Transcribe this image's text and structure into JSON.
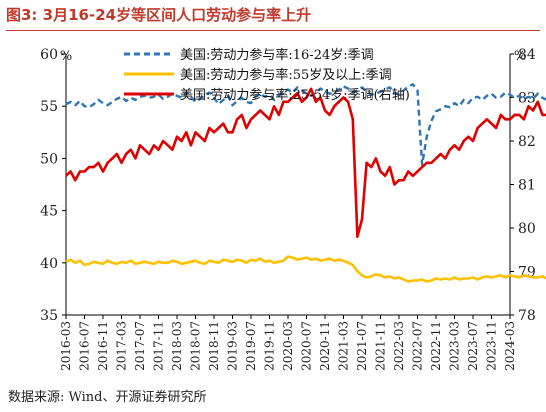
{
  "header": {
    "title": "图3: 3月16-24岁等区间人口劳动参与率上升"
  },
  "footer": {
    "source": "数据来源: Wind、开源证券研究所"
  },
  "colors": {
    "series_16_24": "#2e75b6",
    "series_55": "#ffc000",
    "series_25_54": "#e00000",
    "title": "#c0392b"
  },
  "chart_data": {
    "type": "line",
    "left_axis": {
      "unit": "%",
      "ylim": [
        35,
        60
      ],
      "ticks": [
        35,
        40,
        45,
        50,
        55,
        60
      ]
    },
    "right_axis": {
      "unit": "%",
      "ylim": [
        78,
        84
      ],
      "ticks": [
        78,
        79,
        80,
        81,
        82,
        83,
        84
      ]
    },
    "x_tick_labels": [
      "2016-03",
      "2016-07",
      "2016-11",
      "2017-03",
      "2017-07",
      "2017-11",
      "2018-03",
      "2018-07",
      "2018-11",
      "2019-03",
      "2019-07",
      "2019-11",
      "2020-03",
      "2020-07",
      "2020-11",
      "2021-03",
      "2021-07",
      "2021-11",
      "2022-03",
      "2022-07",
      "2022-11",
      "2023-03",
      "2023-07",
      "2023-11",
      "2024-03"
    ],
    "grid": false,
    "legend": "top",
    "series": [
      {
        "name": "美国:劳动力参与率:16-24岁:季调",
        "axis": "left",
        "style": "dashed",
        "start": "2016-03",
        "values": [
          55.2,
          55.4,
          55.1,
          55.5,
          55.0,
          54.9,
          55.2,
          55.6,
          55.3,
          55.1,
          55.4,
          55.7,
          55.9,
          55.5,
          55.8,
          55.6,
          55.9,
          56.0,
          55.8,
          55.9,
          56.1,
          55.7,
          55.9,
          56.2,
          56.0,
          55.8,
          56.3,
          55.9,
          55.4,
          55.7,
          56.1,
          56.3,
          55.8,
          55.2,
          55.6,
          56.0,
          55.1,
          55.5,
          55.8,
          55.4,
          55.3,
          55.9,
          56.2,
          55.9,
          56.1,
          55.6,
          56.0,
          56.4,
          56.6,
          56.3,
          56.8,
          56.5,
          56.2,
          56.0,
          56.3,
          56.7,
          56.4,
          56.2,
          56.3,
          56.6,
          56.9,
          56.7,
          56.3,
          56.5,
          56.8,
          56.4,
          56.1,
          56.2,
          56.4,
          56.6,
          56.8,
          56.3,
          56.1,
          56.5,
          56.9,
          57.1,
          56.5,
          49.4,
          52.1,
          53.6,
          54.5,
          54.7,
          55.0,
          54.9,
          55.3,
          55.0,
          55.6,
          55.3,
          55.8,
          55.9,
          55.6,
          56.0,
          56.2,
          55.8,
          55.9,
          56.3,
          56.1,
          55.8,
          56.0,
          55.7,
          55.9,
          55.7,
          56.2,
          55.8,
          55.6,
          55.9,
          56.0,
          55.8,
          55.6,
          56.0,
          56.7,
          56.4,
          56.2,
          56.8,
          56.3,
          56.1,
          55.9,
          56.2,
          56.5,
          56.1,
          56.6,
          56.3,
          56.0,
          56.8,
          56.4,
          56.9,
          56.2,
          56.5,
          56.0,
          56.7
        ]
      },
      {
        "name": "美国:劳动力参与率:55岁及以上:季调",
        "axis": "left",
        "style": "solid",
        "start": "2016-03",
        "values": [
          40.1,
          40.3,
          40.0,
          40.2,
          39.8,
          39.9,
          40.1,
          40.0,
          39.9,
          40.2,
          40.0,
          39.9,
          40.1,
          40.0,
          40.2,
          39.9,
          40.0,
          40.1,
          40.0,
          39.9,
          40.1,
          40.0,
          40.0,
          40.2,
          40.1,
          39.9,
          40.0,
          40.1,
          40.2,
          40.0,
          39.9,
          40.2,
          40.1,
          40.0,
          40.3,
          40.2,
          40.1,
          40.3,
          40.2,
          40.0,
          40.3,
          40.2,
          40.4,
          40.1,
          40.2,
          40.0,
          40.1,
          40.2,
          40.6,
          40.5,
          40.3,
          40.4,
          40.5,
          40.3,
          40.4,
          40.2,
          40.3,
          40.4,
          40.2,
          40.3,
          40.2,
          40.0,
          39.8,
          39.2,
          38.8,
          38.6,
          38.7,
          38.9,
          38.8,
          38.6,
          38.7,
          38.5,
          38.6,
          38.4,
          38.2,
          38.3,
          38.3,
          38.4,
          38.2,
          38.3,
          38.5,
          38.4,
          38.5,
          38.4,
          38.6,
          38.4,
          38.5,
          38.5,
          38.6,
          38.4,
          38.6,
          38.7,
          38.6,
          38.7,
          38.8,
          38.6,
          38.8,
          38.7,
          38.6,
          38.8,
          38.7,
          38.6,
          38.6,
          38.7,
          38.5,
          38.6,
          38.7,
          38.6,
          38.5,
          38.6,
          38.7,
          38.8,
          38.6,
          38.5,
          38.7,
          38.6,
          38.7,
          38.8,
          38.7,
          38.5,
          38.6,
          38.5,
          38.6,
          38.7,
          38.6,
          38.7,
          38.8,
          38.7,
          38.6,
          38.7,
          38.7
        ]
      },
      {
        "name": "美国:劳动力参与率:25-54岁:季调(右轴)",
        "axis": "right",
        "style": "solid",
        "start": "2016-03",
        "values": [
          81.2,
          81.3,
          81.1,
          81.3,
          81.3,
          81.4,
          81.4,
          81.5,
          81.3,
          81.5,
          81.6,
          81.7,
          81.5,
          81.7,
          81.8,
          81.6,
          81.9,
          81.8,
          81.7,
          81.9,
          81.8,
          82.0,
          81.9,
          81.8,
          82.1,
          82.0,
          82.2,
          81.9,
          82.2,
          82.1,
          82.0,
          82.3,
          82.2,
          82.3,
          82.4,
          82.2,
          82.2,
          82.5,
          82.6,
          82.3,
          82.5,
          82.6,
          82.7,
          82.6,
          82.5,
          82.8,
          82.6,
          82.9,
          82.9,
          83.0,
          83.1,
          82.9,
          83.0,
          83.2,
          82.9,
          83.0,
          82.7,
          82.6,
          82.8,
          82.9,
          83.0,
          82.9,
          82.5,
          79.8,
          80.2,
          81.5,
          81.4,
          81.6,
          81.3,
          81.2,
          81.4,
          81.0,
          81.1,
          81.1,
          81.3,
          81.2,
          81.3,
          81.4,
          81.5,
          81.5,
          81.6,
          81.7,
          81.6,
          81.8,
          81.9,
          81.8,
          82.0,
          82.1,
          82.0,
          82.3,
          82.4,
          82.5,
          82.4,
          82.3,
          82.6,
          82.5,
          82.5,
          82.6,
          82.6,
          82.5,
          82.8,
          82.7,
          82.9,
          82.6,
          82.6,
          82.7,
          83.0,
          83.0,
          83.2,
          83.1,
          83.2,
          83.4,
          83.3,
          83.2,
          83.4,
          83.5,
          83.3,
          83.2,
          83.2,
          83.3,
          83.4,
          83.6,
          83.5,
          83.5,
          83.5,
          83.4,
          83.3,
          83.5,
          83.3,
          83.4,
          83.5,
          83.6,
          83.5,
          83.3,
          83.4,
          83.6,
          83.5
        ]
      }
    ]
  }
}
